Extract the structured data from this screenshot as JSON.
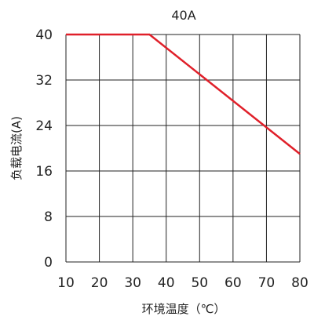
{
  "chart_data": {
    "type": "line",
    "title": "40A",
    "xlabel": "环境温度（℃）",
    "ylabel": "负载电流(A)",
    "xlim": [
      10,
      80
    ],
    "ylim": [
      0,
      40
    ],
    "x_ticks": [
      "10",
      "20",
      "30",
      "40",
      "50",
      "60",
      "70",
      "80"
    ],
    "y_ticks": [
      "0",
      "8",
      "16",
      "24",
      "32",
      "40"
    ],
    "grid": true,
    "series": [
      {
        "color": "#e0202a",
        "points": [
          {
            "x": 10,
            "y": 40
          },
          {
            "x": 35,
            "y": 40
          },
          {
            "x": 80,
            "y": 19
          }
        ]
      }
    ]
  }
}
